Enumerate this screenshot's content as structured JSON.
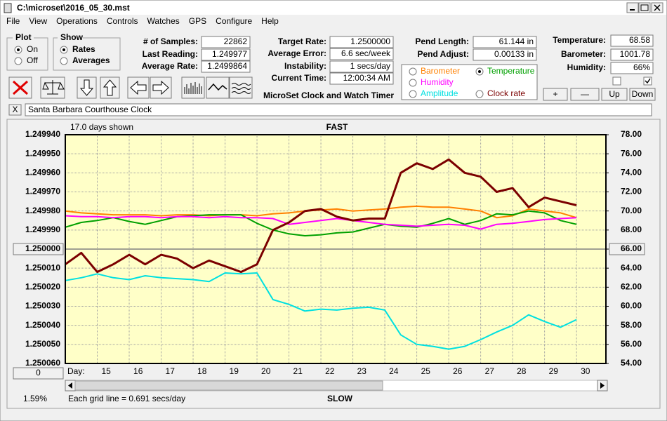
{
  "window": {
    "title": "C:\\microset\\2016_05_30.mst",
    "menu": [
      "File",
      "View",
      "Operations",
      "Controls",
      "Watches",
      "GPS",
      "Configure",
      "Help"
    ],
    "plot": {
      "label": "Plot",
      "options": [
        "On",
        "Off"
      ]
    },
    "show": {
      "label": "Show",
      "options": [
        "Rates",
        "Averages"
      ]
    },
    "fields": [
      {
        "label": "# of Samples:",
        "value": "22862"
      },
      {
        "label": "Last Reading:",
        "value": "1.249977"
      },
      {
        "label": "Average Rate:",
        "value": "1.2499864"
      },
      {
        "label": "Target Rate:",
        "value": "1.2500000"
      },
      {
        "label": "Average Error:",
        "value": "6.6 sec/week"
      },
      {
        "label": "Instability:",
        "value": "1 secs/day"
      },
      {
        "label": "Current Time:",
        "value": "12:00:34 AM"
      },
      {
        "label": "Pend Length:",
        "value": "61.144 in"
      },
      {
        "label": "Pend Adjust:",
        "value": "0.00133 in"
      },
      {
        "label": "Temperature:",
        "value": "68.58"
      },
      {
        "label": "Barometer:",
        "value": "1001.78"
      },
      {
        "label": "Humidity:",
        "value": "66%"
      }
    ],
    "app_name": "MicroSet Clock and Watch Timer",
    "buttons": [
      "+",
      "—",
      "Up",
      "Down"
    ],
    "close_label": "X",
    "clock_name": "Santa Barbara Courthouse Clock",
    "offset": "0",
    "percent": "1.59%",
    "grid_note": "Each grid line = 0.691 secs/day"
  },
  "chart_data": {
    "type": "line",
    "days_shown": "17.0 days shown",
    "top_label": "FAST",
    "bottom_label": "SLOW",
    "x_label": "Day:",
    "grid": true,
    "x": [
      14,
      14.5,
      15,
      15.5,
      16,
      16.5,
      17,
      17.5,
      18,
      18.5,
      19,
      19.5,
      20,
      20.5,
      21,
      21.5,
      22,
      22.5,
      23,
      23.5,
      24,
      24.5,
      25,
      25.5,
      26,
      26.5,
      27,
      27.5,
      28,
      28.5,
      29,
      29.5,
      30
    ],
    "xlim": [
      14,
      30.92
    ],
    "xticks": [
      15,
      16,
      17,
      18,
      19,
      20,
      21,
      22,
      23,
      24,
      25,
      26,
      27,
      28,
      29,
      30
    ],
    "ylim": [
      1.25006,
      1.24994
    ],
    "yticks": [
      {
        "value": 1.24994,
        "label": "1.249940"
      },
      {
        "value": 1.24995,
        "label": "1.249950"
      },
      {
        "value": 1.24996,
        "label": "1.249960"
      },
      {
        "value": 1.24997,
        "label": "1.249970"
      },
      {
        "value": 1.24998,
        "label": "1.249980"
      },
      {
        "value": 1.24999,
        "label": "1.249990"
      },
      {
        "value": 1.25,
        "label": "1.250000"
      },
      {
        "value": 1.25001,
        "label": "1.250010"
      },
      {
        "value": 1.25002,
        "label": "1.250020"
      },
      {
        "value": 1.25003,
        "label": "1.250030"
      },
      {
        "value": 1.25004,
        "label": "1.250040"
      },
      {
        "value": 1.25005,
        "label": "1.250050"
      },
      {
        "value": 1.25006,
        "label": "1.250060"
      }
    ],
    "y2lim": [
      54,
      78
    ],
    "y2ticks": [
      {
        "value": 54,
        "label": "54.00"
      },
      {
        "value": 56,
        "label": "56.00"
      },
      {
        "value": 58,
        "label": "58.00"
      },
      {
        "value": 60,
        "label": "60.00"
      },
      {
        "value": 62,
        "label": "62.00"
      },
      {
        "value": 64,
        "label": "64.00"
      },
      {
        "value": 66,
        "label": "66.00"
      },
      {
        "value": 68,
        "label": "68.00"
      },
      {
        "value": 70,
        "label": "70.00"
      },
      {
        "value": 72,
        "label": "72.00"
      },
      {
        "value": 74,
        "label": "74.00"
      },
      {
        "value": 76,
        "label": "76.00"
      },
      {
        "value": 78,
        "label": "78.00"
      }
    ],
    "series": [
      {
        "name": "Barometer",
        "color": "#ff8000",
        "axis": "y2",
        "values": [
          70.0,
          69.8,
          69.7,
          69.6,
          69.6,
          69.6,
          69.5,
          69.6,
          69.6,
          69.5,
          69.6,
          69.6,
          69.5,
          69.7,
          69.8,
          70.0,
          70.1,
          70.2,
          70.0,
          70.1,
          70.2,
          70.4,
          70.5,
          70.4,
          70.4,
          70.2,
          70.0,
          69.3,
          69.5,
          70.2,
          70.0,
          69.8,
          69.3
        ]
      },
      {
        "name": "Temperature",
        "color": "#00a000",
        "axis": "y2",
        "values": [
          68.3,
          68.8,
          69.0,
          69.3,
          68.9,
          68.6,
          69.0,
          69.4,
          69.5,
          69.6,
          69.6,
          69.6,
          68.7,
          68.0,
          67.6,
          67.4,
          67.5,
          67.7,
          67.8,
          68.2,
          68.6,
          68.4,
          68.3,
          68.7,
          69.2,
          68.6,
          69.0,
          69.7,
          69.6,
          70.0,
          69.8,
          69.0,
          68.6
        ]
      },
      {
        "name": "Humidity",
        "color": "#ff00ff",
        "axis": "y2",
        "values": [
          69.5,
          69.4,
          69.4,
          69.3,
          69.4,
          69.4,
          69.3,
          69.4,
          69.4,
          69.3,
          69.4,
          69.3,
          69.3,
          69.2,
          68.6,
          68.8,
          69.0,
          69.2,
          69.0,
          68.8,
          68.6,
          68.5,
          68.4,
          68.5,
          68.6,
          68.5,
          68.1,
          68.6,
          68.7,
          68.9,
          69.1,
          69.2,
          69.3
        ]
      },
      {
        "name": "Amplitude",
        "color": "#00e0e0",
        "axis": "y2",
        "values": [
          62.7,
          63.0,
          63.4,
          63.0,
          62.8,
          63.2,
          63.0,
          62.9,
          62.8,
          62.6,
          63.5,
          63.4,
          63.5,
          60.7,
          60.2,
          59.5,
          59.7,
          59.6,
          59.8,
          59.9,
          59.6,
          57.0,
          56.0,
          55.8,
          55.5,
          55.8,
          56.5,
          57.3,
          58.0,
          59.1,
          58.4,
          57.8,
          58.6
        ]
      },
      {
        "name": "Clock rate",
        "color": "#7b0000",
        "axis": "y",
        "values": [
          1.250008,
          1.250002,
          1.250012,
          1.250008,
          1.250003,
          1.250008,
          1.250003,
          1.250005,
          1.25001,
          1.250006,
          1.250009,
          1.250012,
          1.250008,
          1.24999,
          1.249986,
          1.24998,
          1.249979,
          1.249983,
          1.249985,
          1.249984,
          1.249984,
          1.24996,
          1.249955,
          1.249958,
          1.249953,
          1.24996,
          1.249962,
          1.24997,
          1.249968,
          1.249978,
          1.249973,
          1.249975,
          1.249977
        ]
      }
    ]
  }
}
